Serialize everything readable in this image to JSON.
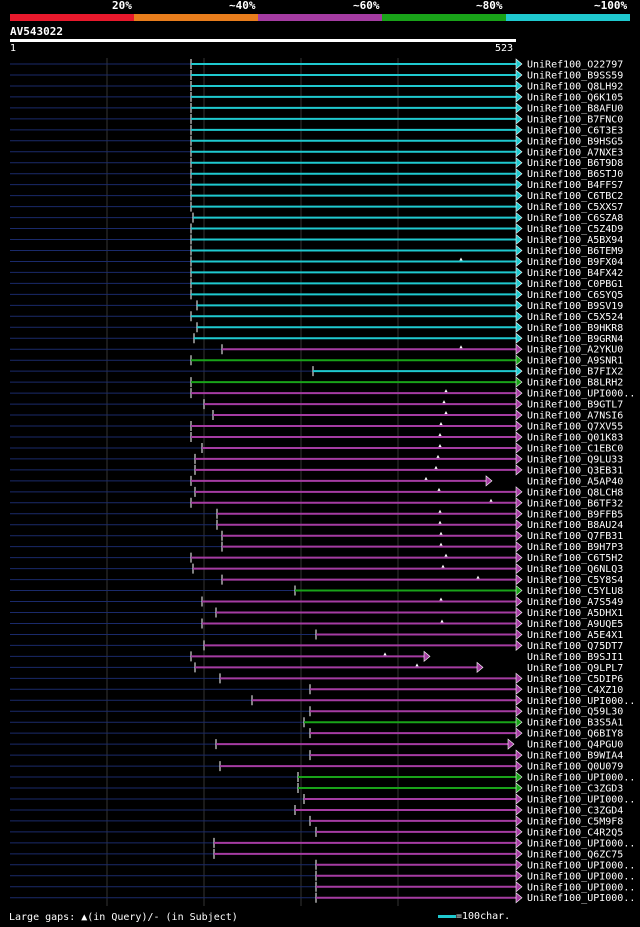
{
  "query": {
    "id": "AV543022",
    "start": "1",
    "end": "523"
  },
  "legend": [
    {
      "label": "20%",
      "color": "#e8192c"
    },
    {
      "label": "~40%",
      "color": "#e87d1c"
    },
    {
      "label": "~60%",
      "color": "#a53ca2"
    },
    {
      "label": "~80%",
      "color": "#19a319"
    },
    {
      "label": "~100%",
      "color": "#1fc9cf"
    }
  ],
  "footer": {
    "gaps_note": "Large gaps: ▲(in Query)/- (in Subject)",
    "scale_note": "=100char."
  },
  "chart_data": {
    "type": "alignment-overview",
    "query_length": 523,
    "hits": [
      {
        "name": "UniRef100_O22797",
        "start": 191,
        "end": 516,
        "color": "cyan",
        "gap": null
      },
      {
        "name": "UniRef100_B9SS59",
        "start": 191,
        "end": 516,
        "color": "cyan",
        "gap": null
      },
      {
        "name": "UniRef100_Q8LH92",
        "start": 191,
        "end": 516,
        "color": "cyan",
        "gap": null
      },
      {
        "name": "UniRef100_Q6K105",
        "start": 191,
        "end": 516,
        "color": "cyan",
        "gap": null
      },
      {
        "name": "UniRef100_B8AFU0",
        "start": 191,
        "end": 516,
        "color": "cyan",
        "gap": null
      },
      {
        "name": "UniRef100_B7FNC0",
        "start": 191,
        "end": 516,
        "color": "cyan",
        "gap": null
      },
      {
        "name": "UniRef100_C6T3E3",
        "start": 191,
        "end": 516,
        "color": "cyan",
        "gap": null
      },
      {
        "name": "UniRef100_B9HSG5",
        "start": 191,
        "end": 516,
        "color": "cyan",
        "gap": null
      },
      {
        "name": "UniRef100_A7NXE3",
        "start": 191,
        "end": 516,
        "color": "cyan",
        "gap": null
      },
      {
        "name": "UniRef100_B6T9D8",
        "start": 191,
        "end": 516,
        "color": "cyan",
        "gap": null
      },
      {
        "name": "UniRef100_B6STJ0",
        "start": 191,
        "end": 516,
        "color": "cyan",
        "gap": null
      },
      {
        "name": "UniRef100_B4FFS7",
        "start": 191,
        "end": 516,
        "color": "cyan",
        "gap": null
      },
      {
        "name": "UniRef100_C6TBC2",
        "start": 191,
        "end": 516,
        "color": "cyan",
        "gap": null
      },
      {
        "name": "UniRef100_C5XXS7",
        "start": 191,
        "end": 516,
        "color": "cyan",
        "gap": null
      },
      {
        "name": "UniRef100_C6SZA8",
        "start": 193,
        "end": 516,
        "color": "cyan",
        "gap": null
      },
      {
        "name": "UniRef100_C5Z4D9",
        "start": 191,
        "end": 516,
        "color": "cyan",
        "gap": null
      },
      {
        "name": "UniRef100_A5BX94",
        "start": 191,
        "end": 516,
        "color": "cyan",
        "gap": null
      },
      {
        "name": "UniRef100_B6TEM9",
        "start": 191,
        "end": 516,
        "color": "cyan",
        "gap": null
      },
      {
        "name": "UniRef100_B9FX04",
        "start": 191,
        "end": 516,
        "color": "cyan",
        "gap": 461
      },
      {
        "name": "UniRef100_B4FX42",
        "start": 191,
        "end": 516,
        "color": "cyan",
        "gap": null
      },
      {
        "name": "UniRef100_C0PBG1",
        "start": 191,
        "end": 516,
        "color": "cyan",
        "gap": null
      },
      {
        "name": "UniRef100_C6SYQ5",
        "start": 191,
        "end": 516,
        "color": "cyan",
        "gap": null
      },
      {
        "name": "UniRef100_B9SV19",
        "start": 197,
        "end": 516,
        "color": "cyan",
        "gap": null
      },
      {
        "name": "UniRef100_C5X524",
        "start": 191,
        "end": 516,
        "color": "cyan",
        "gap": null
      },
      {
        "name": "UniRef100_B9HKR8",
        "start": 197,
        "end": 516,
        "color": "cyan",
        "gap": null
      },
      {
        "name": "UniRef100_B9GRN4",
        "start": 194,
        "end": 516,
        "color": "cyan",
        "gap": null
      },
      {
        "name": "UniRef100_A2YKU0",
        "start": 222,
        "end": 516,
        "color": "purple",
        "gap": 461
      },
      {
        "name": "UniRef100_A9SNR1",
        "start": 191,
        "end": 516,
        "color": "green",
        "gap": null
      },
      {
        "name": "UniRef100_B7FIX2",
        "start": 313,
        "end": 516,
        "color": "cyan",
        "gap": null
      },
      {
        "name": "UniRef100_B8LRH2",
        "start": 191,
        "end": 516,
        "color": "green",
        "gap": null
      },
      {
        "name": "UniRef100_UPI000..",
        "start": 191,
        "end": 516,
        "color": "purple",
        "gap": 446
      },
      {
        "name": "UniRef100_B9GTL7",
        "start": 204,
        "end": 516,
        "color": "purple",
        "gap": 444
      },
      {
        "name": "UniRef100_A7NSI6",
        "start": 213,
        "end": 516,
        "color": "purple",
        "gap": 446
      },
      {
        "name": "UniRef100_Q7XV55",
        "start": 191,
        "end": 516,
        "color": "purple",
        "gap": 441
      },
      {
        "name": "UniRef100_Q01K83",
        "start": 191,
        "end": 516,
        "color": "purple",
        "gap": 440
      },
      {
        "name": "UniRef100_C1EBC0",
        "start": 202,
        "end": 516,
        "color": "purple",
        "gap": 440
      },
      {
        "name": "UniRef100_Q9LU33",
        "start": 195,
        "end": 516,
        "color": "purple",
        "gap": 438
      },
      {
        "name": "UniRef100_Q3EB31",
        "start": 195,
        "end": 516,
        "color": "purple",
        "gap": 436
      },
      {
        "name": "UniRef100_A5AP40",
        "start": 191,
        "end": 486,
        "color": "purple",
        "gap": 426
      },
      {
        "name": "UniRef100_Q8LCH8",
        "start": 195,
        "end": 516,
        "color": "purple",
        "gap": 439
      },
      {
        "name": "UniRef100_B6TF32",
        "start": 191,
        "end": 516,
        "color": "purple",
        "gap": 491
      },
      {
        "name": "UniRef100_B9FFB5",
        "start": 217,
        "end": 516,
        "color": "purple",
        "gap": 440
      },
      {
        "name": "UniRef100_B8AU24",
        "start": 217,
        "end": 516,
        "color": "purple",
        "gap": 440
      },
      {
        "name": "UniRef100_Q7FB31",
        "start": 222,
        "end": 516,
        "color": "purple",
        "gap": 441
      },
      {
        "name": "UniRef100_B9H7P3",
        "start": 222,
        "end": 516,
        "color": "purple",
        "gap": 441
      },
      {
        "name": "UniRef100_C6T5H2",
        "start": 191,
        "end": 516,
        "color": "purple",
        "gap": 446
      },
      {
        "name": "UniRef100_Q6NLQ3",
        "start": 193,
        "end": 516,
        "color": "purple",
        "gap": 443
      },
      {
        "name": "UniRef100_C5Y8S4",
        "start": 222,
        "end": 516,
        "color": "purple",
        "gap": 478
      },
      {
        "name": "UniRef100_C5YLU8",
        "start": 295,
        "end": 516,
        "color": "green",
        "gap": null
      },
      {
        "name": "UniRef100_A7S549",
        "start": 202,
        "end": 516,
        "color": "purple",
        "gap": 441
      },
      {
        "name": "UniRef100_A5DHX1",
        "start": 216,
        "end": 516,
        "color": "purple",
        "gap": null
      },
      {
        "name": "UniRef100_A9UQE5",
        "start": 202,
        "end": 516,
        "color": "purple",
        "gap": 442
      },
      {
        "name": "UniRef100_A5E4X1",
        "start": 316,
        "end": 516,
        "color": "purple",
        "gap": null
      },
      {
        "name": "UniRef100_Q75DT7",
        "start": 204,
        "end": 516,
        "color": "purple",
        "gap": null
      },
      {
        "name": "UniRef100_B9SJI1",
        "start": 191,
        "end": 424,
        "color": "purple",
        "gap": 385
      },
      {
        "name": "UniRef100_Q9LPL7",
        "start": 195,
        "end": 477,
        "color": "purple",
        "gap": 417
      },
      {
        "name": "UniRef100_C5DIP6",
        "start": 220,
        "end": 516,
        "color": "purple",
        "gap": null
      },
      {
        "name": "UniRef100_C4XZ10",
        "start": 310,
        "end": 516,
        "color": "purple",
        "gap": null
      },
      {
        "name": "UniRef100_UPI000..",
        "start": 252,
        "end": 516,
        "color": "purple",
        "gap": null
      },
      {
        "name": "UniRef100_Q59L30",
        "start": 310,
        "end": 516,
        "color": "purple",
        "gap": null
      },
      {
        "name": "UniRef100_B3S5A1",
        "start": 304,
        "end": 516,
        "color": "green",
        "gap": null
      },
      {
        "name": "UniRef100_Q6BIY8",
        "start": 310,
        "end": 516,
        "color": "purple",
        "gap": null
      },
      {
        "name": "UniRef100_Q4PGU0",
        "start": 216,
        "end": 508,
        "color": "purple",
        "gap": null
      },
      {
        "name": "UniRef100_B9WIA4",
        "start": 310,
        "end": 516,
        "color": "purple",
        "gap": null
      },
      {
        "name": "UniRef100_Q0U079",
        "start": 220,
        "end": 516,
        "color": "purple",
        "gap": null
      },
      {
        "name": "UniRef100_UPI000..",
        "start": 298,
        "end": 516,
        "color": "green",
        "gap": null
      },
      {
        "name": "UniRef100_C3ZGD3",
        "start": 298,
        "end": 516,
        "color": "green",
        "gap": null
      },
      {
        "name": "UniRef100_UPI000..",
        "start": 304,
        "end": 516,
        "color": "purple",
        "gap": null
      },
      {
        "name": "UniRef100_C3ZGD4",
        "start": 295,
        "end": 516,
        "color": "purple",
        "gap": null
      },
      {
        "name": "UniRef100_C5M9F8",
        "start": 310,
        "end": 516,
        "color": "purple",
        "gap": null
      },
      {
        "name": "UniRef100_C4R2Q5",
        "start": 316,
        "end": 516,
        "color": "purple",
        "gap": null
      },
      {
        "name": "UniRef100_UPI000..",
        "start": 214,
        "end": 516,
        "color": "purple",
        "gap": null
      },
      {
        "name": "UniRef100_Q6ZC75",
        "start": 214,
        "end": 516,
        "color": "purple",
        "gap": null
      },
      {
        "name": "UniRef100_UPI000..",
        "start": 316,
        "end": 516,
        "color": "purple",
        "gap": null
      },
      {
        "name": "UniRef100_UPI000..",
        "start": 316,
        "end": 516,
        "color": "purple",
        "gap": null
      },
      {
        "name": "UniRef100_UPI000..",
        "start": 316,
        "end": 516,
        "color": "purple",
        "gap": null
      },
      {
        "name": "UniRef100_UPI000..",
        "start": 316,
        "end": 516,
        "color": "purple",
        "gap": null
      }
    ]
  }
}
